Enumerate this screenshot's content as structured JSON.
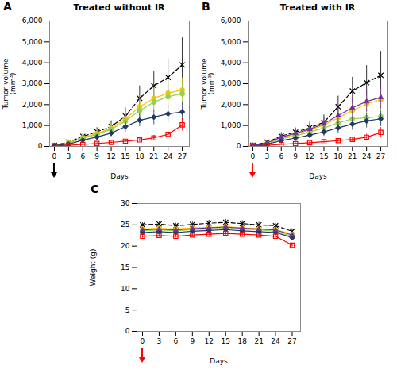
{
  "chart_data": [
    {
      "type": "line",
      "title": "Treated without IR",
      "xlabel": "Days",
      "ylabel": "Tumor volume\n(mm³)",
      "x": [
        0,
        3,
        6,
        9,
        12,
        15,
        18,
        21,
        24,
        27
      ],
      "xlim": [
        -1,
        28.5
      ],
      "xticks": [
        0,
        3,
        6,
        9,
        12,
        15,
        18,
        21,
        24,
        27
      ],
      "ylim": [
        0,
        6000
      ],
      "yticks": [
        0,
        {
          "value": 1000,
          "label": "1,000"
        },
        {
          "value": 2000,
          "label": "2,000"
        },
        {
          "value": 3000,
          "label": "3,000"
        },
        {
          "value": 4000,
          "label": "4,000"
        },
        {
          "value": 5000,
          "label": "5,000"
        },
        {
          "value": 6000,
          "label": "6,000"
        }
      ],
      "grid": false,
      "annotations": [
        {
          "text": "A"
        },
        {
          "type": "arrow",
          "x": 0,
          "color": "black"
        }
      ],
      "series": [
        {
          "color": "#000000",
          "marker": "x",
          "line_style": "dashed",
          "values": [
            50,
            200,
            480,
            700,
            950,
            1450,
            2300,
            2900,
            3300,
            3900
          ],
          "errors": [
            20,
            80,
            150,
            200,
            280,
            400,
            600,
            700,
            900,
            1300
          ]
        },
        {
          "color": "#FFC000",
          "marker": "circle",
          "line_style": "solid",
          "values": [
            50,
            170,
            420,
            620,
            870,
            1320,
            1900,
            2300,
            2550,
            2700
          ],
          "errors": [
            20,
            60,
            120,
            175,
            240,
            330,
            420,
            480,
            530,
            580
          ]
        },
        {
          "color": "#92D050",
          "marker": "circle",
          "line_style": "solid",
          "values": [
            45,
            155,
            395,
            575,
            820,
            1210,
            1720,
            2120,
            2380,
            2530
          ],
          "errors": [
            18,
            50,
            105,
            155,
            225,
            290,
            390,
            460,
            510,
            550
          ]
        },
        {
          "color": "#1F3864",
          "marker": "diamond",
          "line_style": "solid",
          "values": [
            40,
            110,
            300,
            450,
            640,
            950,
            1250,
            1400,
            1560,
            1650
          ],
          "errors": [
            15,
            40,
            85,
            125,
            175,
            260,
            310,
            360,
            410,
            440
          ]
        },
        {
          "color": "#FF0000",
          "marker": "open_square",
          "line_style": "solid",
          "values": [
            25,
            55,
            95,
            140,
            190,
            250,
            310,
            410,
            580,
            1030
          ],
          "errors": [
            10,
            22,
            38,
            48,
            58,
            75,
            95,
            125,
            175,
            295
          ]
        }
      ]
    },
    {
      "type": "line",
      "title": "Treated with IR",
      "xlabel": "Days",
      "ylabel": "Tumor volume\n(mm³)",
      "x": [
        0,
        3,
        6,
        9,
        12,
        15,
        18,
        21,
        24,
        27
      ],
      "xlim": [
        -1,
        28.5
      ],
      "xticks": [
        0,
        3,
        6,
        9,
        12,
        15,
        18,
        21,
        24,
        27
      ],
      "ylim": [
        0,
        6000
      ],
      "yticks": [
        0,
        {
          "value": 1000,
          "label": "1,000"
        },
        {
          "value": 2000,
          "label": "2,000"
        },
        {
          "value": 3000,
          "label": "3,000"
        },
        {
          "value": 4000,
          "label": "4,000"
        },
        {
          "value": 5000,
          "label": "5,000"
        },
        {
          "value": 6000,
          "label": "6,000"
        }
      ],
      "grid": false,
      "annotations": [
        {
          "text": "B"
        },
        {
          "type": "arrow",
          "x": 0,
          "color": "red"
        }
      ],
      "series": [
        {
          "color": "#000000",
          "marker": "x",
          "line_style": "dashed",
          "values": [
            50,
            200,
            500,
            680,
            900,
            1150,
            1900,
            2650,
            3050,
            3400
          ],
          "errors": [
            20,
            80,
            160,
            210,
            270,
            360,
            510,
            660,
            820,
            1150
          ]
        },
        {
          "color": "#FFC000",
          "marker": "circle",
          "line_style": "solid",
          "values": [
            48,
            155,
            400,
            580,
            790,
            1020,
            1370,
            1720,
            2030,
            2230
          ],
          "errors": [
            18,
            55,
            115,
            165,
            215,
            275,
            345,
            425,
            475,
            515
          ]
        },
        {
          "color": "#92D050",
          "marker": "circle",
          "line_style": "solid",
          "values": [
            45,
            130,
            360,
            510,
            690,
            890,
            1120,
            1320,
            1370,
            1430
          ],
          "errors": [
            15,
            45,
            105,
            145,
            195,
            245,
            295,
            345,
            375,
            405
          ]
        },
        {
          "color": "#1F3864",
          "marker": "diamond",
          "line_style": "solid",
          "values": [
            38,
            105,
            280,
            400,
            545,
            695,
            890,
            1070,
            1220,
            1320
          ],
          "errors": [
            14,
            40,
            82,
            112,
            154,
            204,
            254,
            294,
            334,
            364
          ]
        },
        {
          "color": "#7030A0",
          "marker": "triangle",
          "line_style": "solid",
          "values": [
            45,
            170,
            440,
            625,
            830,
            1080,
            1480,
            1850,
            2150,
            2350
          ],
          "errors": [
            18,
            62,
            125,
            175,
            235,
            285,
            375,
            450,
            500,
            550
          ]
        },
        {
          "color": "#FF0000",
          "marker": "open_square",
          "line_style": "solid",
          "values": [
            25,
            50,
            95,
            135,
            175,
            225,
            275,
            335,
            440,
            670
          ],
          "errors": [
            10,
            20,
            36,
            46,
            56,
            72,
            88,
            108,
            158,
            245
          ]
        }
      ]
    },
    {
      "type": "line",
      "xlabel": "Days",
      "ylabel": "Weight (g)",
      "x": [
        0,
        3,
        6,
        9,
        12,
        15,
        18,
        21,
        24,
        27
      ],
      "xlim": [
        -1,
        28.5
      ],
      "xticks": [
        0,
        3,
        6,
        9,
        12,
        15,
        18,
        21,
        24,
        27
      ],
      "ylim": [
        0,
        30
      ],
      "yticks": [
        0,
        5,
        10,
        15,
        20,
        25,
        30
      ],
      "grid": false,
      "annotations": [
        {
          "text": "C"
        },
        {
          "type": "arrow",
          "x": 0,
          "color": "red"
        }
      ],
      "series": [
        {
          "color": "#000000",
          "marker": "x",
          "line_style": "dashed",
          "values": [
            25.0,
            25.2,
            24.8,
            25.1,
            25.4,
            25.6,
            25.3,
            25.0,
            24.8,
            23.5
          ],
          "errors": [
            0.5,
            0.5,
            0.6,
            0.6,
            0.7,
            0.7,
            0.7,
            0.6,
            0.6,
            0.6
          ]
        },
        {
          "color": "#FFC000",
          "marker": "circle",
          "line_style": "solid",
          "values": [
            24.0,
            24.2,
            24.0,
            24.3,
            24.4,
            24.6,
            24.3,
            24.1,
            23.9,
            22.8
          ],
          "errors": [
            0.5,
            0.5,
            0.5,
            0.5,
            0.6,
            0.6,
            0.6,
            0.5,
            0.5,
            0.5
          ]
        },
        {
          "color": "#92D050",
          "marker": "circle",
          "line_style": "solid",
          "values": [
            23.6,
            23.8,
            23.6,
            23.9,
            24.0,
            24.2,
            24.0,
            23.8,
            23.5,
            22.3
          ],
          "errors": [
            0.4,
            0.5,
            0.5,
            0.5,
            0.6,
            0.6,
            0.6,
            0.5,
            0.5,
            0.5
          ]
        },
        {
          "color": "#1F3864",
          "marker": "diamond",
          "line_style": "solid",
          "values": [
            23.2,
            23.4,
            23.2,
            23.5,
            23.7,
            23.9,
            23.6,
            23.4,
            23.2,
            22.0
          ],
          "errors": [
            0.4,
            0.5,
            0.5,
            0.5,
            0.5,
            0.6,
            0.5,
            0.5,
            0.5,
            0.5
          ]
        },
        {
          "color": "#FF0000",
          "marker": "open_square",
          "line_style": "solid",
          "values": [
            22.3,
            22.5,
            22.3,
            22.6,
            22.8,
            23.0,
            22.8,
            22.6,
            22.3,
            20.2
          ],
          "errors": [
            0.4,
            0.4,
            0.4,
            0.5,
            0.5,
            0.5,
            0.5,
            0.5,
            0.4,
            0.5
          ]
        },
        {
          "color": "#7030A0",
          "marker": "triangle",
          "line_style": "solid",
          "values": [
            23.8,
            24.0,
            23.8,
            24.1,
            24.3,
            24.5,
            24.2,
            24.0,
            23.8,
            22.6
          ],
          "errors": [
            0.4,
            0.5,
            0.5,
            0.5,
            0.6,
            0.6,
            0.6,
            0.5,
            0.5,
            0.5
          ]
        }
      ]
    }
  ]
}
